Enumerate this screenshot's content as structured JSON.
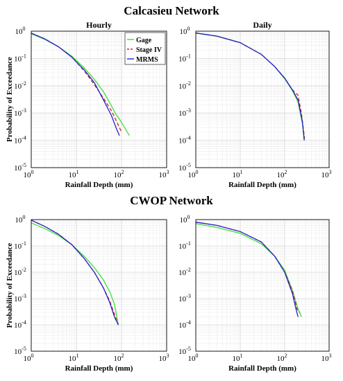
{
  "figure": {
    "top_title": "Calcasieu Network",
    "bottom_title": "CWOP Network"
  },
  "legend": {
    "gage": "Gage",
    "stage_iv": "Stage IV",
    "mrms": "MRMS"
  },
  "colors": {
    "gage": "#3ddc3d",
    "stage_iv": "#cc2222",
    "mrms": "#2222cc",
    "grid": "#d6d6d6",
    "axis": "#000000"
  },
  "chart_data": [
    {
      "type": "line",
      "title": "Hourly",
      "xlabel": "Rainfall Depth (mm)",
      "ylabel": "Probability of Exceedance",
      "xscale": "log",
      "yscale": "log",
      "xlim": [
        1,
        1000
      ],
      "ylim": [
        1e-05,
        1
      ],
      "xticks": [
        "10^0",
        "10^1",
        "10^2",
        "10^3"
      ],
      "yticks": [
        "10^-5",
        "10^-4",
        "10^-3",
        "10^-2",
        "10^-1",
        "10^0"
      ],
      "grid": true,
      "legend_position": "top-right",
      "series": [
        {
          "name": "Gage",
          "x": [
            1,
            2,
            4,
            8,
            15,
            25,
            40,
            60,
            75,
            90,
            110,
            130,
            150
          ],
          "y": [
            0.8,
            0.5,
            0.27,
            0.12,
            0.045,
            0.017,
            0.006,
            0.0018,
            0.0009,
            0.0006,
            0.00035,
            0.00022,
            0.00015
          ]
        },
        {
          "name": "Stage IV",
          "x": [
            1,
            2,
            4,
            8,
            15,
            25,
            40,
            60,
            80,
            100
          ],
          "y": [
            0.85,
            0.52,
            0.27,
            0.11,
            0.035,
            0.011,
            0.0035,
            0.0012,
            0.00045,
            0.0002
          ]
        },
        {
          "name": "MRMS",
          "x": [
            1,
            2,
            4,
            8,
            15,
            25,
            40,
            60,
            75,
            90
          ],
          "y": [
            0.85,
            0.52,
            0.27,
            0.11,
            0.038,
            0.013,
            0.003,
            0.0008,
            0.0003,
            0.00015
          ]
        }
      ]
    },
    {
      "type": "line",
      "title": "Daily",
      "xlabel": "Rainfall Depth (mm)",
      "ylabel": "",
      "xscale": "log",
      "yscale": "log",
      "xlim": [
        1,
        1000
      ],
      "ylim": [
        1e-05,
        1
      ],
      "xticks": [
        "10^0",
        "10^1",
        "10^2",
        "10^3"
      ],
      "yticks": [
        "10^-5",
        "10^-4",
        "10^-3",
        "10^-2",
        "10^-1",
        "10^0"
      ],
      "grid": true,
      "series": [
        {
          "name": "Gage",
          "x": [
            1,
            3,
            10,
            30,
            60,
            100,
            150,
            200,
            250,
            280
          ],
          "y": [
            0.85,
            0.65,
            0.38,
            0.14,
            0.05,
            0.018,
            0.0065,
            0.0025,
            0.0004,
            0.0001
          ]
        },
        {
          "name": "Stage IV",
          "x": [
            1,
            3,
            10,
            30,
            60,
            100,
            150,
            200,
            240,
            280
          ],
          "y": [
            0.86,
            0.66,
            0.38,
            0.14,
            0.05,
            0.019,
            0.007,
            0.0045,
            0.0009,
            0.00012
          ]
        },
        {
          "name": "MRMS",
          "x": [
            1,
            3,
            10,
            30,
            60,
            100,
            150,
            200,
            250,
            275
          ],
          "y": [
            0.86,
            0.66,
            0.38,
            0.14,
            0.05,
            0.019,
            0.007,
            0.003,
            0.0005,
            0.0001
          ]
        }
      ]
    },
    {
      "type": "line",
      "title": "",
      "xlabel": "Rainfall Depth (mm)",
      "ylabel": "Probability of Exceedance",
      "xscale": "log",
      "yscale": "log",
      "xlim": [
        1,
        1000
      ],
      "ylim": [
        1e-05,
        1
      ],
      "xticks": [
        "10^0",
        "10^1",
        "10^2",
        "10^3"
      ],
      "yticks": [
        "10^-5",
        "10^-4",
        "10^-3",
        "10^-2",
        "10^-1",
        "10^0"
      ],
      "grid": true,
      "series": [
        {
          "name": "Gage",
          "x": [
            1,
            2,
            4,
            8,
            15,
            25,
            40,
            55,
            70,
            85
          ],
          "y": [
            0.75,
            0.45,
            0.25,
            0.11,
            0.04,
            0.015,
            0.005,
            0.0018,
            0.0006,
            0.0001
          ]
        },
        {
          "name": "Stage IV",
          "x": [
            1,
            2,
            4,
            8,
            15,
            25,
            40,
            55,
            70,
            85
          ],
          "y": [
            0.95,
            0.55,
            0.28,
            0.11,
            0.033,
            0.01,
            0.0025,
            0.0008,
            0.00025,
            0.0001
          ]
        },
        {
          "name": "MRMS",
          "x": [
            1,
            2,
            4,
            8,
            15,
            25,
            40,
            55,
            70,
            85
          ],
          "y": [
            0.95,
            0.55,
            0.28,
            0.11,
            0.033,
            0.01,
            0.0025,
            0.0007,
            0.0002,
            0.0001
          ]
        }
      ]
    },
    {
      "type": "line",
      "title": "",
      "xlabel": "Rainfall Depth (mm)",
      "ylabel": "",
      "xscale": "log",
      "yscale": "log",
      "xlim": [
        1,
        1000
      ],
      "ylim": [
        1e-05,
        1
      ],
      "xticks": [
        "10^0",
        "10^1",
        "10^2",
        "10^3"
      ],
      "yticks": [
        "10^-5",
        "10^-4",
        "10^-3",
        "10^-2",
        "10^-1",
        "10^0"
      ],
      "grid": true,
      "series": [
        {
          "name": "Gage",
          "x": [
            1,
            3,
            10,
            30,
            60,
            100,
            150,
            200,
            240
          ],
          "y": [
            0.7,
            0.5,
            0.3,
            0.12,
            0.04,
            0.012,
            0.002,
            0.0004,
            0.0002
          ]
        },
        {
          "name": "Stage IV",
          "x": [
            1,
            3,
            10,
            30,
            60,
            100,
            150,
            190,
            220
          ],
          "y": [
            0.8,
            0.6,
            0.35,
            0.14,
            0.04,
            0.01,
            0.002,
            0.0004,
            0.0003
          ]
        },
        {
          "name": "MRMS",
          "x": [
            1,
            3,
            10,
            30,
            60,
            100,
            150,
            180,
            200
          ],
          "y": [
            0.8,
            0.6,
            0.35,
            0.14,
            0.04,
            0.01,
            0.0015,
            0.0004,
            0.0002
          ]
        }
      ]
    }
  ]
}
